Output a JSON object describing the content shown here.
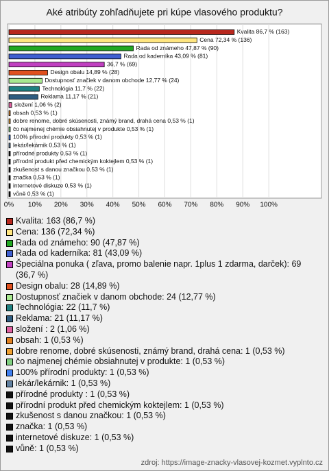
{
  "chart_data": {
    "type": "bar",
    "orientation": "horizontal",
    "title": "Aké atribúty zohľadňujete pri kúpe vlasového produktu?",
    "values": [
      86.7,
      72.34,
      47.87,
      43.09,
      36.7,
      14.89,
      12.77,
      11.7,
      11.17,
      1.06,
      0.53,
      0.53,
      0.53,
      0.53,
      0.53,
      0.53,
      0.53,
      0.53,
      0.53,
      0.53,
      0.53
    ],
    "value_labels": [
      "Kvalita 86,7 % (163)",
      "Cena 72,34 % (136)",
      "Rada od známeho 47,87 % (90)",
      "Rada od kaderníka 43,09 % (81)",
      "36,7 % (69)",
      "Design obalu 14,89 % (28)",
      "Dostupnosť značiek v danom obchode 12,77 % (24)",
      "Technológia 11,7 % (22)",
      "Reklama 11,17 % (21)",
      "složení  1,06 % (2)",
      "obsah 0,53 % (1)",
      "dobre renome, dobré skúsenosti, známý brand, drahá cena 0,53 % (1)",
      "čo najmenej chémie obsiahnutej v produkte 0,53 % (1)",
      "100% přírodní produkty 0,53 % (1)",
      "lekár/lekárnik 0,53 % (1)",
      "přírodné produkty  0,53 % (1)",
      "přírodní produkt před chemickým koktejlem 0,53 % (1)",
      "zkušenost s danou značkou 0,53 % (1)",
      "značka 0,53 % (1)",
      "internetové diskuze 0,53 % (1)",
      "vůně 0,53 % (1)"
    ],
    "colors": [
      "#b8281e",
      "#ffe680",
      "#22a822",
      "#3f5fd0",
      "#c040c0",
      "#e0501e",
      "#a8e890",
      "#1e8080",
      "#2e5c80",
      "#e060a0",
      "#e08020",
      "#f0a030",
      "#80d080",
      "#4080f0",
      "#6080a0",
      "#111111",
      "#111111",
      "#111111",
      "#111111",
      "#111111",
      "#111111"
    ],
    "legend": [
      "Kvalita: 163 (86,7 %)",
      "Cena: 136 (72,34 %)",
      "Rada od známeho: 90 (47,87 %)",
      "Rada od kaderníka: 81 (43,09 %)",
      "Špeciálna ponuka ( zľava, promo balenie napr. 1plus 1 zdarma, darček): 69 (36,7 %)",
      "Design obalu: 28 (14,89 %)",
      "Dostupnosť značiek v danom obchode: 24 (12,77 %)",
      "Technológia: 22 (11,7 %)",
      "Reklama: 21 (11,17 %)",
      "složení : 2 (1,06 %)",
      "obsah: 1 (0,53 %)",
      "dobre renome, dobré skúsenosti, známý brand, drahá cena: 1 (0,53 %)",
      "čo najmenej chémie obsiahnutej v produkte: 1 (0,53 %)",
      "100% přírodní produkty: 1 (0,53 %)",
      "lekár/lekárnik: 1 (0,53 %)",
      "přírodné produkty : 1 (0,53 %)",
      "přírodní produkt před chemickým koktejlem: 1 (0,53 %)",
      "zkušenost s danou značkou: 1 (0,53 %)",
      "značka: 1 (0,53 %)",
      "internetové diskuze: 1 (0,53 %)",
      "vůně: 1 (0,53 %)"
    ],
    "xlim": [
      0,
      120
    ],
    "xticks": [
      {
        "value": 0,
        "label": "0%"
      },
      {
        "value": 10,
        "label": "10%"
      },
      {
        "value": 20,
        "label": "20%"
      },
      {
        "value": 30,
        "label": "30%"
      },
      {
        "value": 40,
        "label": "40%"
      },
      {
        "value": 50,
        "label": "50%"
      },
      {
        "value": 60,
        "label": "60%"
      },
      {
        "value": 70,
        "label": "70%"
      },
      {
        "value": 80,
        "label": "80%"
      },
      {
        "value": 90,
        "label": "90%"
      },
      {
        "value": 100,
        "label": "100%"
      }
    ],
    "grid": true,
    "source": "zdroj: https://image-znacky-vlasovej-kozmet.vyplnto.cz"
  }
}
